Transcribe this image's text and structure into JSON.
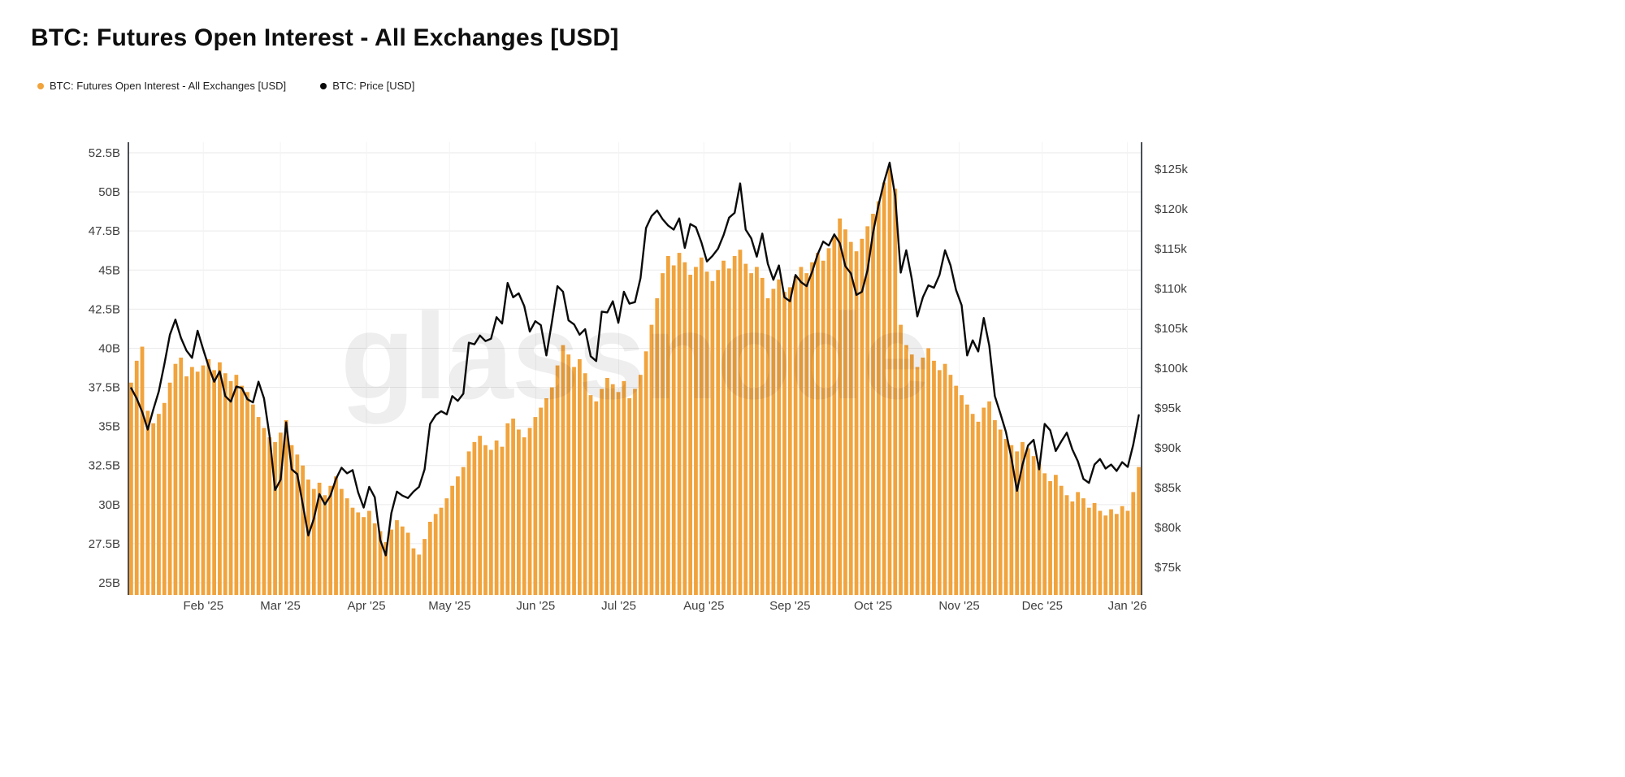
{
  "title": "BTC: Futures Open Interest - All Exchanges [USD]",
  "watermark": "glassnode",
  "legend": [
    {
      "label": "BTC: Futures Open Interest - All Exchanges [USD]",
      "color": "#f1a33c"
    },
    {
      "label": "BTC: Price [USD]",
      "color": "#0a0a0a"
    }
  ],
  "chart_data": {
    "type": "combo-bar-line",
    "title": "BTC: Futures Open Interest - All Exchanges [USD]",
    "x_range": "Jan 2025 - Jan 2026",
    "x_ticks": [
      {
        "label": "Feb '25",
        "pos": 0.074
      },
      {
        "label": "Mar '25",
        "pos": 0.15
      },
      {
        "label": "Apr '25",
        "pos": 0.235
      },
      {
        "label": "May '25",
        "pos": 0.317
      },
      {
        "label": "Jun '25",
        "pos": 0.402
      },
      {
        "label": "Jul '25",
        "pos": 0.484
      },
      {
        "label": "Aug '25",
        "pos": 0.568
      },
      {
        "label": "Sep '25",
        "pos": 0.653
      },
      {
        "label": "Oct '25",
        "pos": 0.735
      },
      {
        "label": "Nov '25",
        "pos": 0.82
      },
      {
        "label": "Dec '25",
        "pos": 0.902
      },
      {
        "label": "Jan '26",
        "pos": 0.986
      }
    ],
    "left_axis": {
      "unit": "B",
      "min": 25,
      "max": 52.5,
      "tick_values": [
        52.5,
        50,
        47.5,
        45,
        42.5,
        40,
        37.5,
        35,
        32.5,
        30,
        27.5,
        25
      ],
      "tick_labels": [
        "52.5B",
        "50B",
        "47.5B",
        "45B",
        "42.5B",
        "40B",
        "37.5B",
        "35B",
        "32.5B",
        "30B",
        "27.5B",
        "25B"
      ]
    },
    "right_axis": {
      "unit": "USD",
      "min": 75,
      "max": 125,
      "tick_values": [
        125,
        120,
        115,
        110,
        105,
        100,
        95,
        90,
        85,
        80,
        75
      ],
      "tick_labels": [
        "$125k",
        "$120k",
        "$115k",
        "$110k",
        "$105k",
        "$100k",
        "$95k",
        "$90k",
        "$85k",
        "$80k",
        "$75k"
      ]
    },
    "series": [
      {
        "name": "BTC: Futures Open Interest - All Exchanges [USD]",
        "type": "bar",
        "axis": "left",
        "color": "#f1a33c",
        "unit": "B",
        "values": [
          37.8,
          39.2,
          40.1,
          36.0,
          35.2,
          35.8,
          36.5,
          37.8,
          39.0,
          39.4,
          38.2,
          38.8,
          38.5,
          38.9,
          39.3,
          38.6,
          39.1,
          38.4,
          37.9,
          38.3,
          37.6,
          37.2,
          36.4,
          35.6,
          34.9,
          34.3,
          34.0,
          34.6,
          35.4,
          33.8,
          33.2,
          32.5,
          31.6,
          31.0,
          31.4,
          30.6,
          31.2,
          31.8,
          31.0,
          30.4,
          29.8,
          29.5,
          29.2,
          29.6,
          28.8,
          28.3,
          27.6,
          28.4,
          29.0,
          28.6,
          28.2,
          27.2,
          26.8,
          27.8,
          28.9,
          29.4,
          29.8,
          30.4,
          31.2,
          31.8,
          32.4,
          33.4,
          34.0,
          34.4,
          33.8,
          33.5,
          34.1,
          33.7,
          35.2,
          35.5,
          34.8,
          34.3,
          34.9,
          35.6,
          36.2,
          36.8,
          37.5,
          38.9,
          40.2,
          39.6,
          38.8,
          39.3,
          38.4,
          37.0,
          36.6,
          37.4,
          38.1,
          37.7,
          37.2,
          37.9,
          36.8,
          37.4,
          38.3,
          39.8,
          41.5,
          43.2,
          44.8,
          45.9,
          45.3,
          46.1,
          45.5,
          44.7,
          45.2,
          45.8,
          44.9,
          44.3,
          45.0,
          45.6,
          45.1,
          45.9,
          46.3,
          45.4,
          44.8,
          45.2,
          44.5,
          43.2,
          43.8,
          44.4,
          43.6,
          43.9,
          44.6,
          45.2,
          44.8,
          45.5,
          46.1,
          45.6,
          46.4,
          47.2,
          48.3,
          47.6,
          46.8,
          46.2,
          47.0,
          47.8,
          48.6,
          49.4,
          50.6,
          51.5,
          50.2,
          41.5,
          40.2,
          39.6,
          38.8,
          39.4,
          40.0,
          39.2,
          38.6,
          39.0,
          38.3,
          37.6,
          37.0,
          36.4,
          35.8,
          35.3,
          36.2,
          36.6,
          35.4,
          34.8,
          34.2,
          33.8,
          33.4,
          34.0,
          33.6,
          33.1,
          32.6,
          32.0,
          31.5,
          31.9,
          31.2,
          30.6,
          30.2,
          30.8,
          30.4,
          29.8,
          30.1,
          29.6,
          29.3,
          29.7,
          29.4,
          29.9,
          29.6,
          30.8,
          32.4
        ]
      },
      {
        "name": "BTC: Price [USD]",
        "type": "line",
        "axis": "right",
        "color": "#0a0a0a",
        "unit": "$k",
        "values": [
          97.5,
          96.2,
          94.5,
          92.3,
          94.8,
          97.1,
          100.5,
          104.2,
          106.1,
          103.8,
          102.2,
          101.3,
          104.7,
          102.4,
          100.2,
          98.3,
          99.6,
          96.5,
          95.8,
          97.7,
          97.5,
          96.1,
          95.7,
          98.3,
          96.2,
          91.5,
          84.7,
          86.0,
          93.2,
          87.3,
          86.7,
          82.9,
          79.0,
          81.1,
          84.2,
          82.9,
          84.0,
          86.1,
          87.5,
          86.8,
          87.2,
          84.4,
          82.5,
          85.1,
          83.8,
          78.4,
          76.5,
          81.8,
          84.5,
          84.0,
          83.7,
          84.5,
          85.1,
          87.3,
          93.0,
          94.1,
          94.6,
          94.2,
          96.5,
          95.9,
          96.8,
          103.2,
          103.0,
          104.1,
          103.4,
          103.7,
          106.4,
          105.6,
          110.7,
          108.9,
          109.4,
          107.8,
          104.6,
          105.9,
          105.4,
          101.6,
          105.8,
          110.3,
          109.6,
          106.0,
          105.5,
          104.2,
          104.9,
          101.5,
          100.9,
          107.1,
          107.0,
          108.4,
          105.7,
          109.6,
          108.1,
          108.3,
          111.3,
          117.6,
          119.1,
          119.8,
          118.7,
          117.9,
          117.4,
          118.8,
          115.1,
          118.1,
          117.7,
          115.8,
          113.4,
          114.1,
          115.0,
          116.7,
          118.9,
          119.5,
          123.2,
          117.4,
          116.3,
          114.0,
          116.9,
          113.1,
          111.1,
          112.9,
          108.9,
          108.4,
          111.7,
          110.8,
          110.3,
          112.1,
          114.3,
          115.9,
          115.4,
          116.8,
          115.7,
          112.8,
          111.9,
          109.2,
          109.6,
          112.3,
          117.0,
          120.5,
          123.4,
          125.8,
          121.6,
          112.0,
          114.8,
          111.2,
          106.5,
          108.9,
          110.4,
          110.1,
          111.7,
          114.8,
          112.9,
          109.8,
          107.9,
          101.6,
          103.5,
          102.1,
          106.3,
          102.8,
          96.5,
          94.3,
          92.0,
          88.7,
          84.6,
          87.9,
          90.3,
          91.0,
          87.3,
          93.0,
          92.2,
          89.6,
          90.8,
          91.9,
          89.8,
          88.3,
          86.1,
          85.6,
          87.9,
          88.6,
          87.4,
          87.9,
          87.1,
          88.2,
          87.6,
          90.4,
          94.1
        ]
      }
    ]
  }
}
